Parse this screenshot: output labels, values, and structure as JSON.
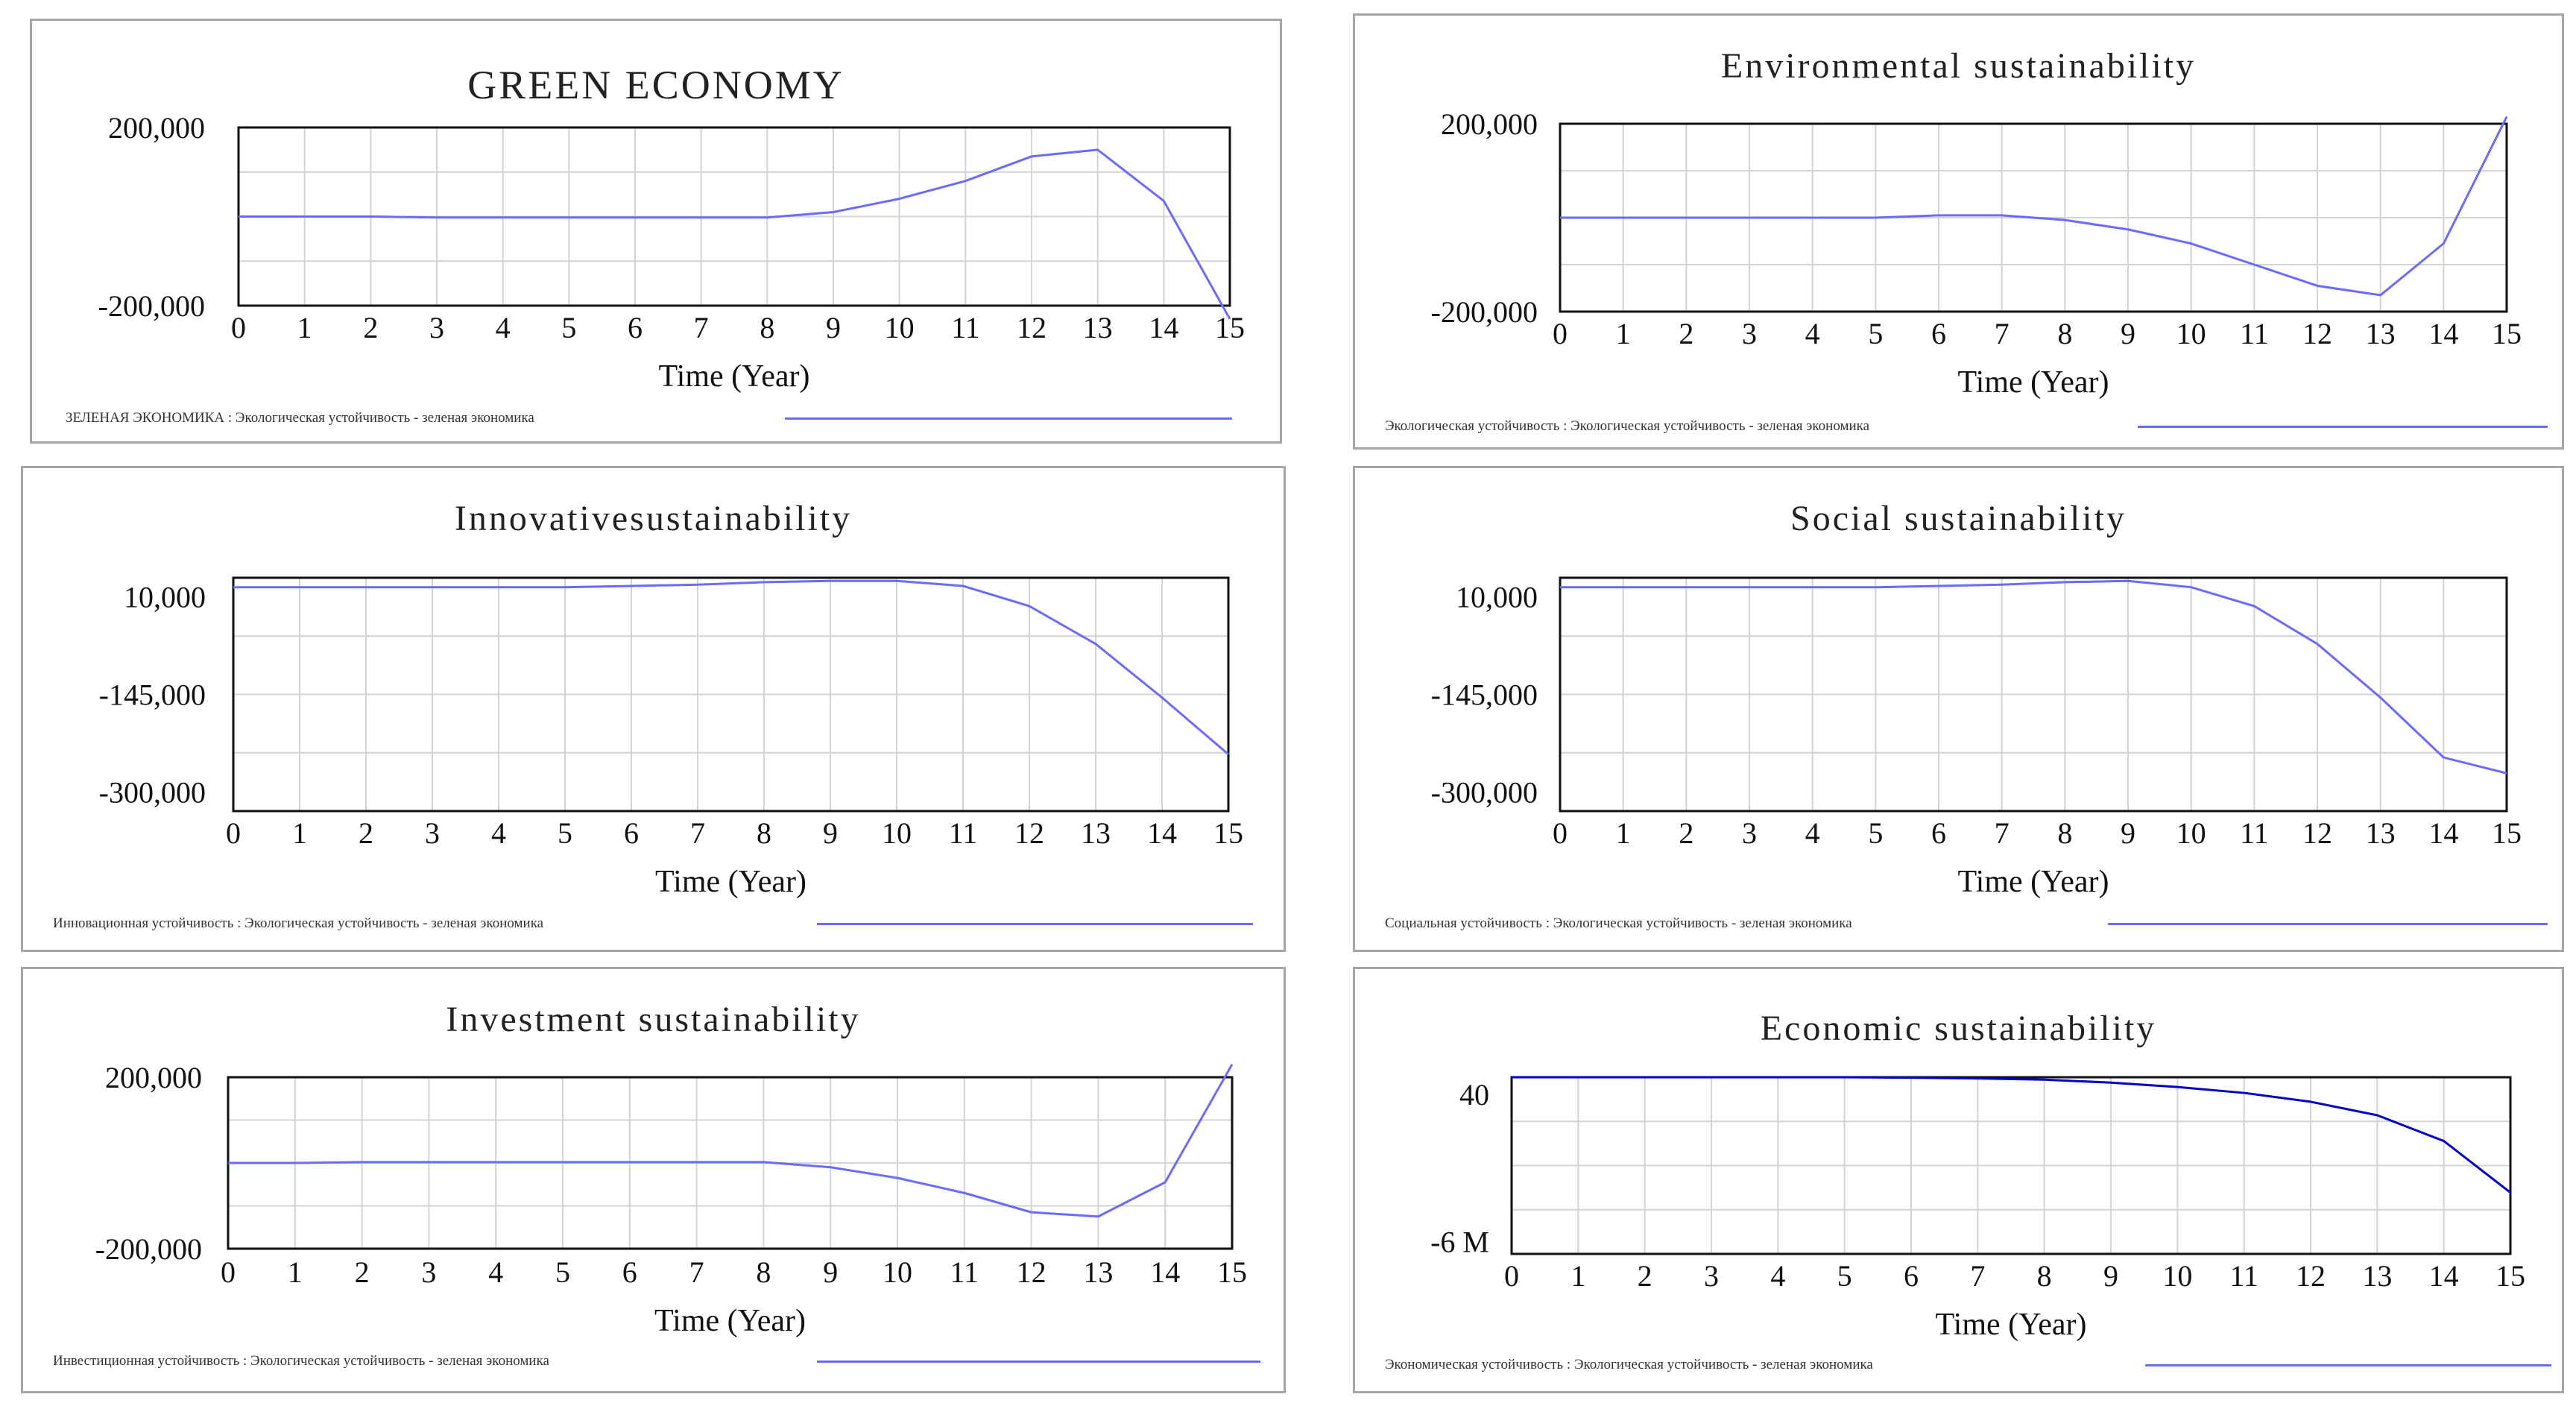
{
  "chart_data": [
    {
      "id": "green",
      "type": "line",
      "title": "GREEN ECONOMY",
      "xlabel": "Time (Year)",
      "ylabel": "",
      "x": [
        0,
        1,
        2,
        3,
        4,
        5,
        6,
        7,
        8,
        9,
        10,
        11,
        12,
        13,
        14,
        15
      ],
      "ylim": [
        -200000,
        200000
      ],
      "ytick_values": [
        200000,
        -200000
      ],
      "ytick_labels": [
        "200,000",
        "-200,000"
      ],
      "legend": "ЗЕЛЕНАЯ ЭКОНОМИКА : Экологическая устойчивость - зеленая экономика",
      "series": [
        {
          "name": "ЗЕЛЕНАЯ ЭКОНОМИКА",
          "color": "#6b6bff",
          "values": [
            0,
            0,
            0,
            -2000,
            -2000,
            -2000,
            -2000,
            -2000,
            -2000,
            10000,
            40000,
            80000,
            135000,
            150000,
            35000,
            -230000
          ]
        }
      ]
    },
    {
      "id": "environmental",
      "type": "line",
      "title": "Environmental sustainability",
      "xlabel": "Time (Year)",
      "ylabel": "",
      "x": [
        0,
        1,
        2,
        3,
        4,
        5,
        6,
        7,
        8,
        9,
        10,
        11,
        12,
        13,
        14,
        15
      ],
      "ylim": [
        -200000,
        200000
      ],
      "ytick_values": [
        200000,
        -200000
      ],
      "ytick_labels": [
        "200,000",
        "-200,000"
      ],
      "legend": "Экологическая устойчивость : Экологическая устойчивость - зеленая экономика",
      "series": [
        {
          "name": "Экологическая устойчивость",
          "color": "#6b6bff",
          "values": [
            0,
            0,
            0,
            0,
            0,
            0,
            5000,
            5000,
            -5000,
            -25000,
            -55000,
            -100000,
            -145000,
            -165000,
            -55000,
            215000
          ]
        }
      ]
    },
    {
      "id": "innovative",
      "type": "line",
      "title": "Innovativesustainability",
      "xlabel": "Time (Year)",
      "ylabel": "",
      "x": [
        0,
        1,
        2,
        3,
        4,
        5,
        6,
        7,
        8,
        9,
        10,
        11,
        12,
        13,
        14,
        15
      ],
      "ylim": [
        -330000,
        40000
      ],
      "ytick_values": [
        10000,
        -145000,
        -300000
      ],
      "ytick_labels": [
        "10,000",
        "-145,000",
        "-300,000"
      ],
      "legend": "Инновационная устойчивость : Экологическая устойчивость - зеленая экономика",
      "series": [
        {
          "name": "Инновационная устойчивость",
          "color": "#6b6bff",
          "values": [
            25000,
            25000,
            25000,
            25000,
            25000,
            25000,
            27000,
            29000,
            33000,
            35000,
            35000,
            27000,
            -5000,
            -65000,
            -150000,
            -240000
          ]
        }
      ]
    },
    {
      "id": "social",
      "type": "line",
      "title": "Social sustainability",
      "xlabel": "Time (Year)",
      "ylabel": "",
      "x": [
        0,
        1,
        2,
        3,
        4,
        5,
        6,
        7,
        8,
        9,
        10,
        11,
        12,
        13,
        14,
        15
      ],
      "ylim": [
        -330000,
        40000
      ],
      "ytick_values": [
        10000,
        -145000,
        -300000
      ],
      "ytick_labels": [
        "10,000",
        "-145,000",
        "-300,000"
      ],
      "legend": "Социальная устойчивость : Экологическая устойчивость - зеленая экономика",
      "series": [
        {
          "name": "Социальная устойчивость",
          "color": "#6b6bff",
          "values": [
            25000,
            25000,
            25000,
            25000,
            25000,
            25000,
            27000,
            29000,
            33000,
            35000,
            25000,
            -5000,
            -65000,
            -150000,
            -245000,
            -270000
          ]
        }
      ]
    },
    {
      "id": "investment",
      "type": "line",
      "title": "Investment sustainability",
      "xlabel": "Time (Year)",
      "ylabel": "",
      "x": [
        0,
        1,
        2,
        3,
        4,
        5,
        6,
        7,
        8,
        9,
        10,
        11,
        12,
        13,
        14,
        15
      ],
      "ylim": [
        -200000,
        200000
      ],
      "ytick_values": [
        200000,
        -200000
      ],
      "ytick_labels": [
        "200,000",
        "-200,000"
      ],
      "legend": "Инвестиционная устойчивость : Экологическая устойчивость - зеленая экономика",
      "series": [
        {
          "name": "Инвестиционная устойчивость",
          "color": "#6b6bff",
          "values": [
            0,
            0,
            2000,
            2000,
            2000,
            2000,
            2000,
            2000,
            2000,
            -10000,
            -35000,
            -70000,
            -115000,
            -125000,
            -45000,
            230000
          ]
        }
      ]
    },
    {
      "id": "economic",
      "type": "line",
      "title": "Economic sustainability",
      "xlabel": "Time (Year)",
      "ylabel": "",
      "x": [
        0,
        1,
        2,
        3,
        4,
        5,
        6,
        7,
        8,
        9,
        10,
        11,
        12,
        13,
        14,
        15
      ],
      "ylim": [
        -6500000,
        700000
      ],
      "ytick_values": [
        40,
        -6000000
      ],
      "ytick_labels": [
        "40",
        "-6 M"
      ],
      "legend": "Экономическая устойчивость : Экологическая устойчивость - зеленая экономика",
      "series": [
        {
          "name": "Экономическая устойчивость",
          "color": "#0000cc",
          "values": [
            700000,
            700000,
            700000,
            700000,
            700000,
            700000,
            680000,
            650000,
            600000,
            480000,
            300000,
            60000,
            -300000,
            -850000,
            -1900000,
            -4000000
          ]
        }
      ]
    }
  ]
}
